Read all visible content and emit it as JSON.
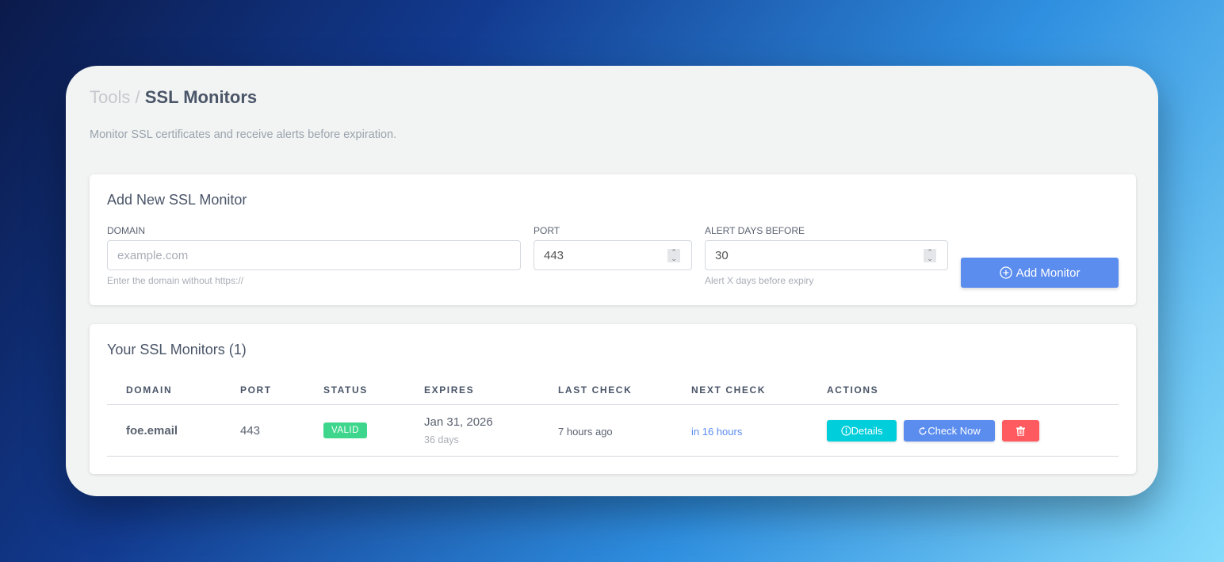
{
  "breadcrumb": {
    "parent": "Tools",
    "separator": "/",
    "current": "SSL Monitors"
  },
  "subtitle": "Monitor SSL certificates and receive alerts before expiration.",
  "add_form": {
    "title": "Add New SSL Monitor",
    "domain": {
      "label": "DOMAIN",
      "placeholder": "example.com",
      "value": "",
      "help": "Enter the domain without https://"
    },
    "port": {
      "label": "PORT",
      "value": "443"
    },
    "alert_days": {
      "label": "ALERT DAYS BEFORE",
      "value": "30",
      "help": "Alert X days before expiry"
    },
    "submit_label": "Add Monitor"
  },
  "monitors": {
    "title": "Your SSL Monitors (1)",
    "columns": [
      "DOMAIN",
      "PORT",
      "STATUS",
      "EXPIRES",
      "LAST CHECK",
      "NEXT CHECK",
      "ACTIONS"
    ],
    "rows": [
      {
        "domain": "foe.email",
        "port": "443",
        "status": "VALID",
        "expires": "Jan 31, 2026",
        "expires_in": "36 days",
        "last_check": "7 hours ago",
        "next_check": "in 16 hours",
        "details_label": "Details",
        "check_now_label": "Check Now"
      }
    ]
  },
  "colors": {
    "primary": "#5b8def",
    "info": "#00cedb",
    "danger": "#ff5a5f",
    "success": "#3dd68c"
  }
}
